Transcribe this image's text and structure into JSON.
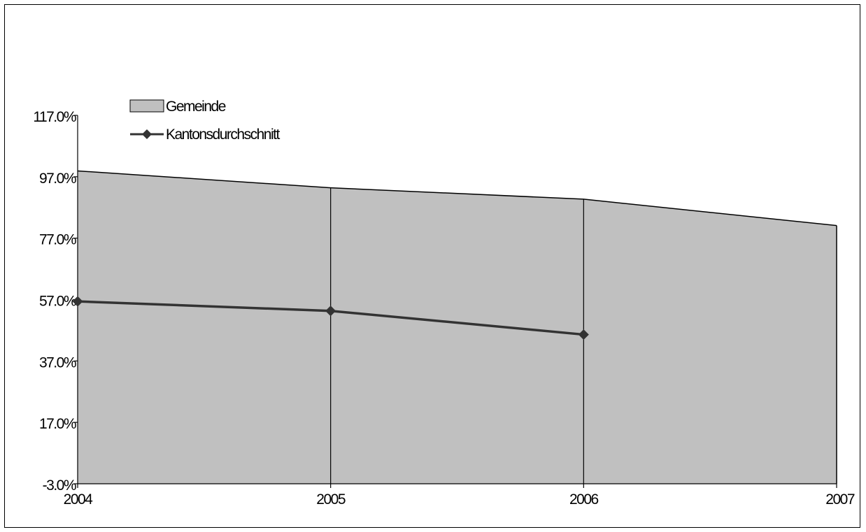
{
  "chart_data": {
    "type": "area",
    "categories": [
      "2004",
      "2005",
      "2006",
      "2007"
    ],
    "series": [
      {
        "name": "Gemeinde",
        "kind": "area",
        "values": [
          98.9,
          93.4,
          89.7,
          81.1
        ],
        "fill": "#c0c0c0",
        "stroke": "#000000"
      },
      {
        "name": "Kantonsdurchschnitt",
        "kind": "line",
        "marker": "diamond",
        "values": [
          56.4,
          53.3,
          45.6,
          null
        ],
        "stroke": "#333333"
      }
    ],
    "y_ticks": [
      "117.0%",
      "97.0%",
      "77.0%",
      "57.0%",
      "37.0%",
      "17.0%",
      "-3.0%"
    ],
    "y_tick_values": [
      117,
      97,
      77,
      57,
      37,
      17,
      -3
    ],
    "ylim": [
      -3,
      117
    ],
    "grid": false,
    "legend_position": "top-left",
    "title": "",
    "xlabel": "",
    "ylabel": ""
  }
}
